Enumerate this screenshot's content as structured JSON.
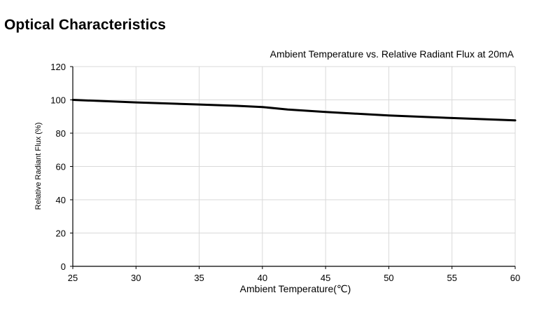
{
  "page": {
    "section_title": "Optical Characteristics"
  },
  "chart_data": {
    "type": "line",
    "title": "Ambient Temperature vs. Relative Radiant Flux at 20mA",
    "xlabel": "Ambient Temperature(℃)",
    "ylabel": "Relative Radiant Flux (%)",
    "xlim": [
      25,
      60
    ],
    "ylim": [
      0,
      120
    ],
    "xticks": [
      25,
      30,
      35,
      40,
      45,
      50,
      55,
      60
    ],
    "yticks": [
      0,
      20,
      40,
      60,
      80,
      100,
      120
    ],
    "grid": true,
    "series": [
      {
        "x": [
          25,
          30,
          35,
          38,
          40,
          42,
          45,
          50,
          55,
          60
        ],
        "y": [
          100,
          98.5,
          97.2,
          96.4,
          95.7,
          94.2,
          92.7,
          90.6,
          89.1,
          87.7
        ]
      }
    ],
    "colors": {
      "line": "#000000",
      "grid": "#d9d9d9",
      "axis": "#000000"
    }
  }
}
